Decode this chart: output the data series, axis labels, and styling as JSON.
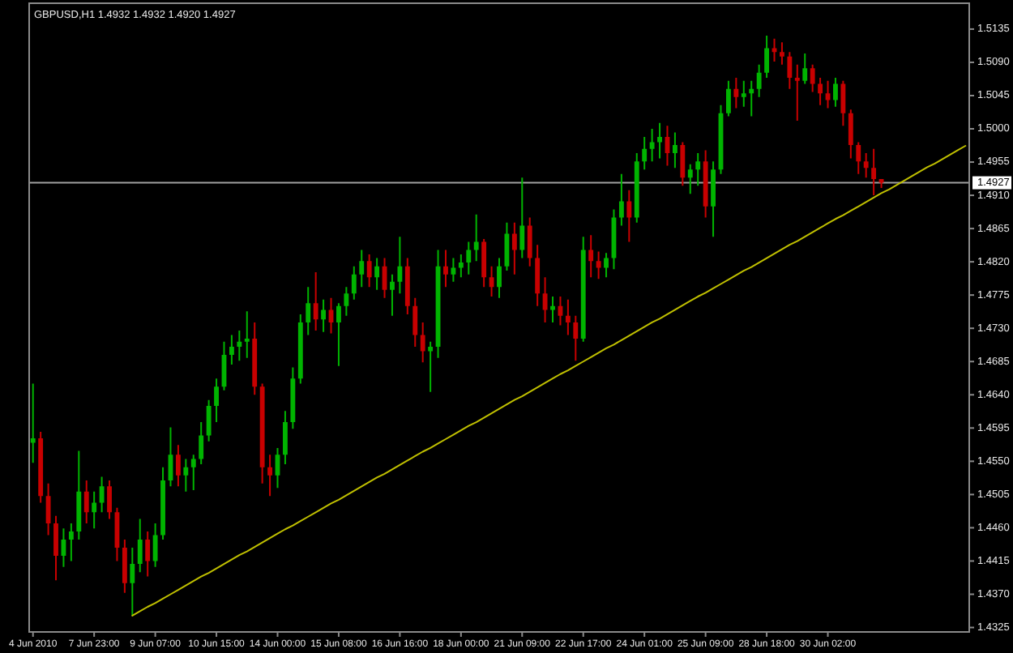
{
  "chart_data": {
    "type": "candlestick",
    "title": "GBPUSD,H1 1.4932 1.4932 1.4920 1.4927",
    "categories": [
      "4 Jun 2010",
      null,
      null,
      null,
      null,
      null,
      null,
      null,
      "7 Jun 23:00",
      null,
      null,
      null,
      null,
      null,
      null,
      null,
      "9 Jun 07:00",
      null,
      null,
      null,
      null,
      null,
      null,
      null,
      "10 Jun 15:00",
      null,
      null,
      null,
      null,
      null,
      null,
      null,
      "14 Jun 00:00",
      null,
      null,
      null,
      null,
      null,
      null,
      null,
      "15 Jun 08:00",
      null,
      null,
      null,
      null,
      null,
      null,
      null,
      "16 Jun 16:00",
      null,
      null,
      null,
      null,
      null,
      null,
      null,
      "18 Jun 00:00",
      null,
      null,
      null,
      null,
      null,
      null,
      null,
      "21 Jun 09:00",
      null,
      null,
      null,
      null,
      null,
      null,
      null,
      "22 Jun 17:00",
      null,
      null,
      null,
      null,
      null,
      null,
      null,
      "24 Jun 01:00",
      null,
      null,
      null,
      null,
      null,
      null,
      null,
      "25 Jun 09:00",
      null,
      null,
      null,
      null,
      null,
      null,
      null,
      "28 Jun 18:00",
      null,
      null,
      null,
      null,
      null,
      null,
      null,
      "30 Jun 02:00",
      null,
      null,
      null,
      null,
      null,
      null,
      null,
      null,
      null,
      null,
      null,
      null,
      null,
      null,
      null,
      null,
      null,
      null
    ],
    "ohlc": [
      [
        1.4575,
        1.4655,
        1.4548,
        1.4581
      ],
      [
        1.4581,
        1.459,
        1.4494,
        1.4503
      ],
      [
        1.4503,
        1.452,
        1.445,
        1.4466
      ],
      [
        1.4466,
        1.4476,
        1.4389,
        1.4422
      ],
      [
        1.4422,
        1.4459,
        1.4407,
        1.4444
      ],
      [
        1.4444,
        1.4466,
        1.4415,
        1.4455
      ],
      [
        1.4455,
        1.4564,
        1.4444,
        1.4509
      ],
      [
        1.4509,
        1.4524,
        1.4466,
        1.4481
      ],
      [
        1.4481,
        1.4509,
        1.4459,
        1.4494
      ],
      [
        1.4494,
        1.4529,
        1.4481,
        1.4516
      ],
      [
        1.4516,
        1.4524,
        1.4472,
        1.4481
      ],
      [
        1.4481,
        1.4487,
        1.4415,
        1.4433
      ],
      [
        1.4433,
        1.4444,
        1.4372,
        1.4385
      ],
      [
        1.4385,
        1.4433,
        1.4341,
        1.4411
      ],
      [
        1.4411,
        1.4472,
        1.44,
        1.4444
      ],
      [
        1.4444,
        1.4455,
        1.4394,
        1.4415
      ],
      [
        1.4415,
        1.4466,
        1.4407,
        1.445
      ],
      [
        1.445,
        1.4542,
        1.4444,
        1.4524
      ],
      [
        1.4524,
        1.4596,
        1.4516,
        1.4559
      ],
      [
        1.4559,
        1.4572,
        1.4516,
        1.4531
      ],
      [
        1.4531,
        1.4553,
        1.4509,
        1.4542
      ],
      [
        1.4542,
        1.4559,
        1.4511,
        1.4553
      ],
      [
        1.4553,
        1.4603,
        1.4546,
        1.4585
      ],
      [
        1.4585,
        1.4633,
        1.4577,
        1.4625
      ],
      [
        1.4625,
        1.4662,
        1.4603,
        1.4651
      ],
      [
        1.4651,
        1.4712,
        1.4646,
        1.4694
      ],
      [
        1.4694,
        1.4721,
        1.4681,
        1.4705
      ],
      [
        1.4705,
        1.4727,
        1.4686,
        1.4712
      ],
      [
        1.4712,
        1.4753,
        1.469,
        1.4716
      ],
      [
        1.4716,
        1.4738,
        1.464,
        1.4651
      ],
      [
        1.4651,
        1.4655,
        1.452,
        1.4542
      ],
      [
        1.4542,
        1.4559,
        1.4503,
        1.4531
      ],
      [
        1.4531,
        1.4568,
        1.4514,
        1.4559
      ],
      [
        1.4559,
        1.4618,
        1.4546,
        1.4603
      ],
      [
        1.4603,
        1.4677,
        1.4594,
        1.4662
      ],
      [
        1.4662,
        1.4749,
        1.4655,
        1.4738
      ],
      [
        1.4738,
        1.4786,
        1.4721,
        1.4764
      ],
      [
        1.4764,
        1.4806,
        1.4727,
        1.4742
      ],
      [
        1.4742,
        1.4769,
        1.4725,
        1.4755
      ],
      [
        1.4755,
        1.4771,
        1.4723,
        1.4738
      ],
      [
        1.4738,
        1.4764,
        1.4679,
        1.476
      ],
      [
        1.476,
        1.4786,
        1.4747,
        1.4777
      ],
      [
        1.4777,
        1.4814,
        1.4769,
        1.4803
      ],
      [
        1.4803,
        1.4836,
        1.4786,
        1.4821
      ],
      [
        1.4821,
        1.483,
        1.4786,
        1.4799
      ],
      [
        1.4799,
        1.4825,
        1.4782,
        1.4814
      ],
      [
        1.4814,
        1.4825,
        1.4771,
        1.4782
      ],
      [
        1.4782,
        1.4803,
        1.4747,
        1.4793
      ],
      [
        1.4793,
        1.4854,
        1.4777,
        1.4814
      ],
      [
        1.4814,
        1.4825,
        1.4749,
        1.476
      ],
      [
        1.476,
        1.4771,
        1.4705,
        1.4721
      ],
      [
        1.4721,
        1.4738,
        1.4684,
        1.4699
      ],
      [
        1.4699,
        1.4712,
        1.4644,
        1.4705
      ],
      [
        1.4705,
        1.4836,
        1.469,
        1.4814
      ],
      [
        1.4814,
        1.4836,
        1.4786,
        1.4803
      ],
      [
        1.4803,
        1.4825,
        1.4793,
        1.4812
      ],
      [
        1.4812,
        1.483,
        1.4799,
        1.4819
      ],
      [
        1.4819,
        1.4847,
        1.4803,
        1.4836
      ],
      [
        1.4836,
        1.4884,
        1.4821,
        1.4847
      ],
      [
        1.4847,
        1.4851,
        1.4786,
        1.4799
      ],
      [
        1.4799,
        1.4814,
        1.4773,
        1.4786
      ],
      [
        1.4786,
        1.4825,
        1.4771,
        1.4814
      ],
      [
        1.4814,
        1.4873,
        1.4808,
        1.4858
      ],
      [
        1.4858,
        1.4873,
        1.4803,
        1.4836
      ],
      [
        1.4836,
        1.4934,
        1.4825,
        1.4869
      ],
      [
        1.4869,
        1.488,
        1.4814,
        1.4825
      ],
      [
        1.4825,
        1.4843,
        1.476,
        1.4777
      ],
      [
        1.4777,
        1.4799,
        1.4738,
        1.4755
      ],
      [
        1.4755,
        1.4773,
        1.4738,
        1.476
      ],
      [
        1.476,
        1.4773,
        1.4734,
        1.4747
      ],
      [
        1.4747,
        1.4769,
        1.4721,
        1.4738
      ],
      [
        1.4738,
        1.4747,
        1.4686,
        1.4716
      ],
      [
        1.4716,
        1.4854,
        1.4712,
        1.4836
      ],
      [
        1.4836,
        1.4856,
        1.4799,
        1.4821
      ],
      [
        1.4821,
        1.4834,
        1.4797,
        1.4812
      ],
      [
        1.4812,
        1.4832,
        1.4799,
        1.4825
      ],
      [
        1.4825,
        1.4891,
        1.481,
        1.488
      ],
      [
        1.488,
        1.4939,
        1.4869,
        1.4902
      ],
      [
        1.4902,
        1.4917,
        1.4847,
        1.488
      ],
      [
        1.488,
        1.4967,
        1.4873,
        1.4956
      ],
      [
        1.4956,
        1.4989,
        1.4945,
        1.4973
      ],
      [
        1.4973,
        1.5,
        1.4956,
        1.4982
      ],
      [
        1.4982,
        1.5008,
        1.496,
        1.4989
      ],
      [
        1.4989,
        1.5004,
        1.495,
        1.4967
      ],
      [
        1.4967,
        1.4995,
        1.4947,
        1.4978
      ],
      [
        1.4978,
        1.4982,
        1.4923,
        1.4934
      ],
      [
        1.4934,
        1.4952,
        1.4912,
        1.4945
      ],
      [
        1.4945,
        1.4967,
        1.4923,
        1.4956
      ],
      [
        1.4956,
        1.4971,
        1.488,
        1.4895
      ],
      [
        1.4895,
        1.4956,
        1.4854,
        1.4945
      ],
      [
        1.4945,
        1.5032,
        1.4939,
        1.5021
      ],
      [
        1.5021,
        1.5065,
        1.5017,
        1.5054
      ],
      [
        1.5054,
        1.5069,
        1.5028,
        1.5043
      ],
      [
        1.5043,
        1.5065,
        1.503,
        1.5048
      ],
      [
        1.5048,
        1.5065,
        1.5017,
        1.5054
      ],
      [
        1.5054,
        1.5087,
        1.5043,
        1.5076
      ],
      [
        1.5076,
        1.5126,
        1.5069,
        1.5109
      ],
      [
        1.5109,
        1.5122,
        1.5091,
        1.5104
      ],
      [
        1.5104,
        1.5117,
        1.5087,
        1.5098
      ],
      [
        1.5098,
        1.5104,
        1.5054,
        1.5069
      ],
      [
        1.5069,
        1.5087,
        1.5011,
        1.5065
      ],
      [
        1.5065,
        1.5102,
        1.5061,
        1.5082
      ],
      [
        1.5082,
        1.5087,
        1.505,
        1.5061
      ],
      [
        1.5061,
        1.5069,
        1.5032,
        1.5048
      ],
      [
        1.5048,
        1.5065,
        1.5028,
        1.5039
      ],
      [
        1.5039,
        1.5069,
        1.503,
        1.5061
      ],
      [
        1.5061,
        1.5065,
        1.5004,
        1.5021
      ],
      [
        1.5021,
        1.5026,
        1.496,
        1.4978
      ],
      [
        1.4978,
        1.4982,
        1.4939,
        1.4956
      ],
      [
        1.4956,
        1.4967,
        1.4934,
        1.4947
      ],
      [
        1.4947,
        1.4973,
        1.491,
        1.4932
      ],
      [
        1.4932,
        1.4932,
        1.492,
        1.4927
      ],
      null,
      null,
      null,
      null,
      null,
      null,
      null,
      null,
      null,
      null,
      null
    ],
    "colors": [
      "#00b400",
      "#c80000",
      "#c80000",
      "#c80000",
      "#00b400",
      "#00b400",
      "#00b400",
      "#c80000",
      "#00b400",
      "#00b400",
      "#c80000",
      "#c80000",
      "#c80000",
      "#00b400",
      "#00b400",
      "#c80000",
      "#00b400",
      "#00b400",
      "#00b400",
      "#c80000",
      "#00b400",
      "#00b400",
      "#00b400",
      "#00b400",
      "#00b400",
      "#00b400",
      "#00b400",
      "#00b400",
      "#00b400",
      "#c80000",
      "#c80000",
      "#c80000",
      "#00b400",
      "#00b400",
      "#00b400",
      "#00b400",
      "#00b400",
      "#c80000",
      "#00b400",
      "#c80000",
      "#00b400",
      "#00b400",
      "#00b400",
      "#00b400",
      "#c80000",
      "#00b400",
      "#c80000",
      "#00b400",
      "#00b400",
      "#c80000",
      "#c80000",
      "#c80000",
      "#00b400",
      "#00b400",
      "#c80000",
      "#00b400",
      "#00b400",
      "#00b400",
      "#00b400",
      "#c80000",
      "#c80000",
      "#00b400",
      "#00b400",
      "#c80000",
      "#00b400",
      "#c80000",
      "#c80000",
      "#c80000",
      "#00b400",
      "#c80000",
      "#c80000",
      "#c80000",
      "#00b400",
      "#c80000",
      "#c80000",
      "#00b400",
      "#00b400",
      "#00b400",
      "#c80000",
      "#00b400",
      "#00b400",
      "#00b400",
      "#00b400",
      "#c80000",
      "#00b400",
      "#c80000",
      "#00b400",
      "#00b400",
      "#c80000",
      "#00b400",
      "#00b400",
      "#00b400",
      "#c80000",
      "#00b400",
      "#00b400",
      "#00b400",
      "#00b400",
      "#c80000",
      "#c80000",
      "#c80000",
      "#c80000",
      "#00b400",
      "#c80000",
      "#c80000",
      "#c80000",
      "#00b400",
      "#c80000",
      "#c80000",
      "#c80000",
      "#c80000",
      "#c80000",
      "#c80000",
      null,
      null,
      null,
      null,
      null,
      null,
      null,
      null,
      null,
      null,
      null
    ],
    "series": [
      {
        "type": "line",
        "color": "#c0c000",
        "values": [
          null,
          null,
          null,
          null,
          null,
          null,
          null,
          null,
          null,
          null,
          null,
          null,
          null,
          1.4341,
          1.4347,
          1.4353,
          1.4358,
          1.4364,
          1.437,
          1.4376,
          1.4382,
          1.4388,
          1.4394,
          1.4399,
          1.4405,
          1.4411,
          1.4417,
          1.4423,
          1.4428,
          1.4434,
          1.444,
          1.4446,
          1.4452,
          1.4458,
          1.4463,
          1.4469,
          1.4475,
          1.4481,
          1.4487,
          1.4493,
          1.4498,
          1.4504,
          1.451,
          1.4516,
          1.4522,
          1.4528,
          1.4533,
          1.4539,
          1.4545,
          1.4551,
          1.4557,
          1.4563,
          1.4568,
          1.4574,
          1.458,
          1.4586,
          1.4592,
          1.4598,
          1.4603,
          1.4609,
          1.4615,
          1.4621,
          1.4627,
          1.4633,
          1.4638,
          1.4644,
          1.465,
          1.4656,
          1.4662,
          1.4668,
          1.4673,
          1.4679,
          1.4685,
          1.4691,
          1.4697,
          1.4703,
          1.4708,
          1.4714,
          1.472,
          1.4726,
          1.4732,
          1.4738,
          1.4743,
          1.4749,
          1.4755,
          1.4761,
          1.4767,
          1.4773,
          1.4778,
          1.4784,
          1.479,
          1.4796,
          1.4802,
          1.4808,
          1.4813,
          1.4819,
          1.4825,
          1.4831,
          1.4837,
          1.4843,
          1.4848,
          1.4854,
          1.486,
          1.4866,
          1.4872,
          1.4878,
          1.4883,
          1.4889,
          1.4895,
          1.4901,
          1.4907,
          1.4913,
          1.4918,
          1.4924,
          1.493,
          1.4936,
          1.4942,
          1.4948,
          1.4953,
          1.4959,
          1.4965,
          1.4971,
          1.4977
        ]
      }
    ],
    "ylim": [
      1.4319,
      1.517
    ],
    "yticks": [
      1.4325,
      {
        "value": 1.437,
        "label": "1.4370"
      },
      1.4415,
      {
        "value": 1.446,
        "label": "1.4460"
      },
      1.4505,
      {
        "value": 1.455,
        "label": "1.4550"
      },
      1.4595,
      {
        "value": 1.464,
        "label": "1.4640"
      },
      1.4685,
      {
        "value": 1.473,
        "label": "1.4730"
      },
      1.4775,
      {
        "value": 1.482,
        "label": "1.4820"
      },
      1.4865,
      {
        "value": 1.491,
        "label": "1.4910"
      },
      1.4955,
      {
        "value": 1.5,
        "label": "1.5000"
      },
      1.5045,
      {
        "value": 1.509,
        "label": "1.5090"
      },
      1.5135
    ],
    "ref_lines": [
      {
        "axis": "y",
        "value": 1.4927,
        "label": "1.4927",
        "color": "#a0a0a0"
      }
    ]
  }
}
